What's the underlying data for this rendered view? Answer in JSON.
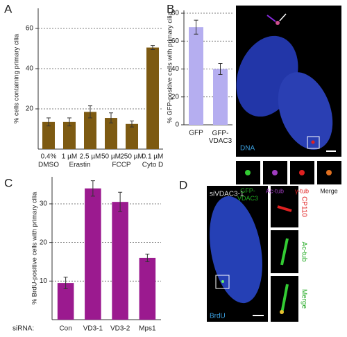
{
  "chart_data": [
    {
      "type": "bar",
      "panel": "A",
      "y_label": "% cells containing primary cilia",
      "categories": [
        "0.4%",
        "1 µM",
        "2.5 µM",
        "50 µM",
        "250 µM",
        "0.1 µM"
      ],
      "groups": [
        {
          "label": "DMSO",
          "span": [
            0,
            0
          ]
        },
        {
          "label": "Erastin",
          "span": [
            1,
            2
          ]
        },
        {
          "label": "FCCP",
          "span": [
            3,
            4
          ]
        },
        {
          "label": "Cyto D",
          "span": [
            5,
            5
          ]
        }
      ],
      "values": [
        13.5,
        13.5,
        18.5,
        15.5,
        12.5,
        50.5
      ],
      "errors": [
        2,
        2,
        3,
        2.5,
        1.5,
        1
      ],
      "color": "#7d5a12",
      "ylim": [
        0,
        70
      ],
      "yticks": [
        20,
        40,
        60
      ],
      "grid": true
    },
    {
      "type": "bar",
      "panel": "B",
      "y_label": "% GFP-positive cells with primary cilia",
      "categories": [
        "GFP",
        "GFP-\nVDAC3"
      ],
      "values": [
        70,
        40
      ],
      "errors": [
        5,
        4
      ],
      "color": "#b5aef0",
      "ylim": [
        0,
        82
      ],
      "yticks": [
        0,
        20,
        40,
        60,
        80
      ],
      "grid": true
    },
    {
      "type": "bar",
      "panel": "C",
      "y_label": "% BrdU-positive cells with primary cilia",
      "x_prefix": "siRNA:",
      "categories": [
        "Con",
        "VD3-1",
        "VD3-2",
        "Mps1"
      ],
      "values": [
        9.5,
        34,
        30.5,
        16
      ],
      "errors": [
        1.5,
        2,
        2.5,
        1
      ],
      "color": "#9b1a8f",
      "ylim": [
        0,
        37
      ],
      "yticks": [
        10,
        20,
        30
      ],
      "grid": true
    }
  ],
  "panel_b_image": {
    "main_label": "DNA",
    "insets": [
      "GFP-\nVDAC3",
      "Ac-tub",
      "γ-tub",
      "Merge"
    ]
  },
  "panel_d_image": {
    "letter": "D",
    "title": "siVDAC3-1",
    "main_label": "BrdU",
    "insets": [
      "CP110",
      "Ac-tub",
      "Merge"
    ]
  }
}
